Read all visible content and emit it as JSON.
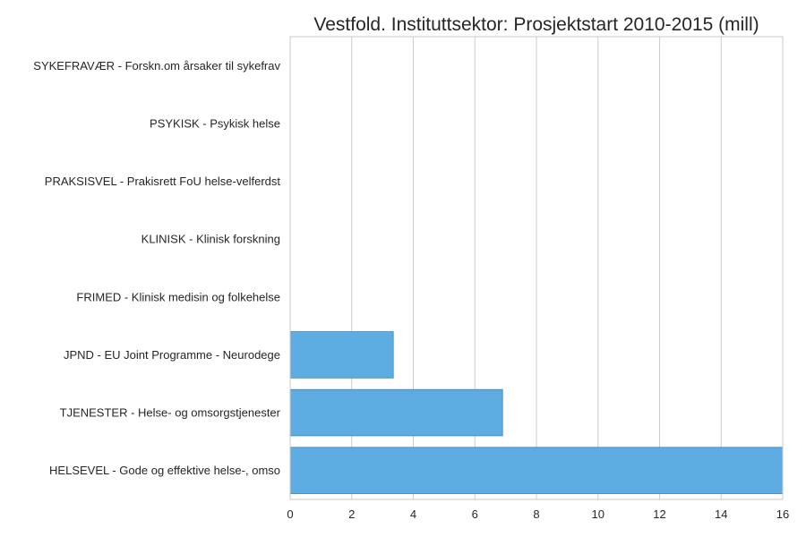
{
  "chart_data": {
    "type": "bar",
    "orientation": "horizontal",
    "title": "Vestfold. Instituttsektor: Prosjektstart 2010-2015 (mill)",
    "xlabel": "",
    "ylabel": "",
    "xlim": [
      0,
      16
    ],
    "xticks": [
      0,
      2,
      4,
      6,
      8,
      10,
      12,
      14,
      16
    ],
    "grid": true,
    "bar_color": "#5dade2",
    "categories": [
      "SYKEFRAVÆR - Forskn.om årsaker til sykefrav",
      "PSYKISK - Psykisk helse",
      "PRAKSISVEL - Prakisrett FoU helse-velferdst",
      "KLINISK - Klinisk forskning",
      "FRIMED - Klinisk medisin og folkehelse",
      "JPND - EU Joint Programme - Neurodege",
      "TJENESTER - Helse- og omsorgstjenester",
      "HELSEVEL - Gode og effektive helse-, omso"
    ],
    "values": [
      0,
      0,
      0,
      0,
      0,
      3.35,
      6.9,
      16.0
    ]
  }
}
